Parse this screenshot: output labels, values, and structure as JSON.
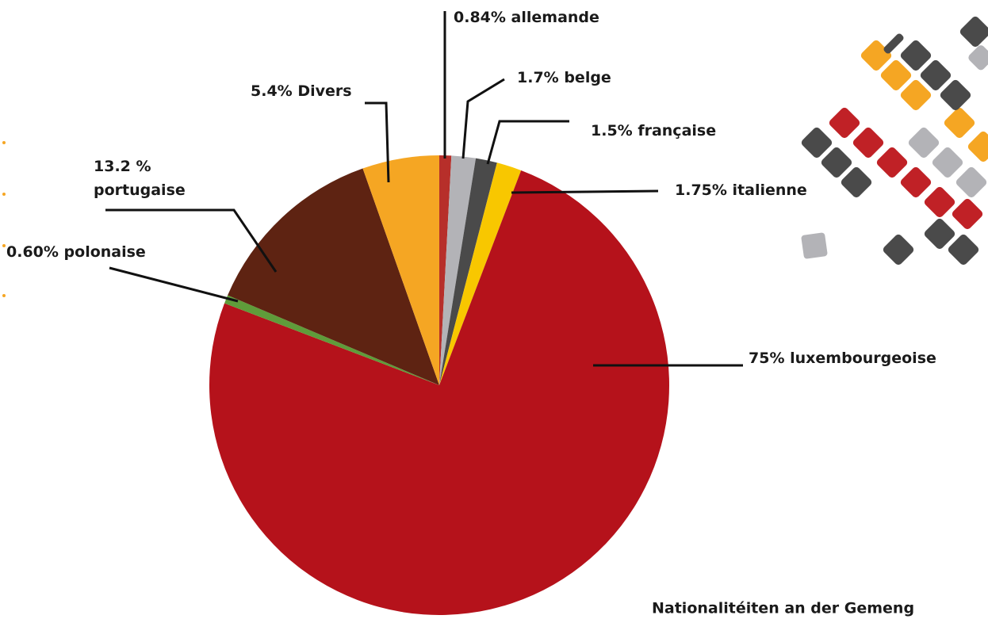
{
  "chart_data": {
    "type": "pie",
    "title": "Nationalitéiten an der Gemeng",
    "categories": [
      "allemande",
      "belge",
      "française",
      "italienne",
      "luxembourgeoise",
      "polonaise",
      "portugaise",
      "Divers"
    ],
    "values": [
      0.84,
      1.7,
      1.5,
      1.75,
      75,
      0.6,
      13.2,
      5.4
    ],
    "value_labels": [
      "0.84%",
      "1.7%",
      "1.5%",
      "1.75%",
      "75%",
      "0.60%",
      "13.2 %",
      "5.4%"
    ],
    "colors": [
      "#b72f2a",
      "#b3b3b7",
      "#4a4a4a",
      "#f8c700",
      "#b5121b",
      "#5f9c3a",
      "#5e2312",
      "#f5a623"
    ]
  }
}
